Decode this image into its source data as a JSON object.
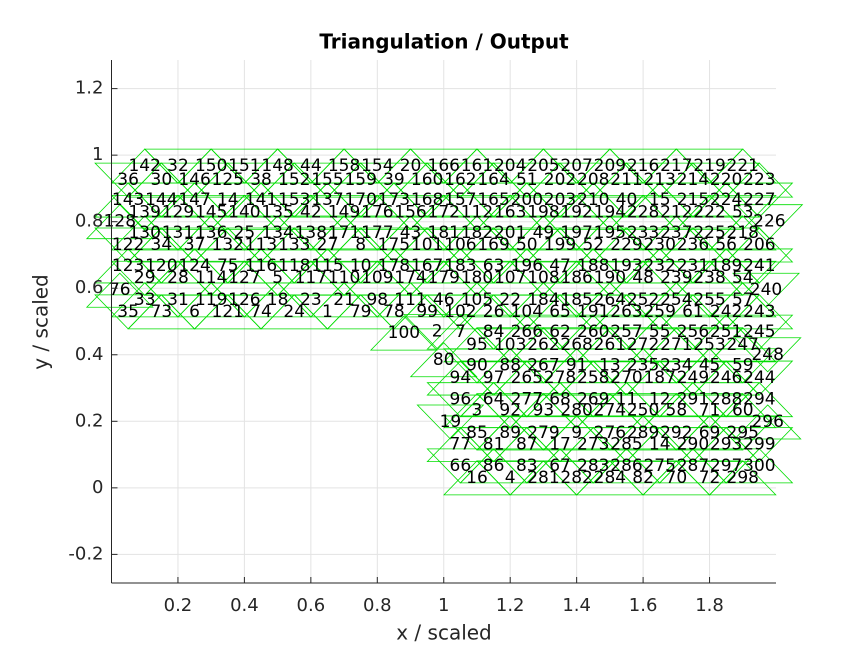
{
  "chart_data": {
    "type": "mesh",
    "title": "Triangulation / Output",
    "xlabel": "x / scaled",
    "ylabel": "y / scaled",
    "xlim": [
      0,
      2
    ],
    "ylim": [
      -0.286,
      1.286
    ],
    "xticks": [
      0.2,
      0.4,
      0.6,
      0.8,
      1,
      1.2,
      1.4,
      1.6,
      1.8
    ],
    "yticks": [
      -0.2,
      0,
      0.2,
      0.4,
      0.6,
      0.8,
      1,
      1.2
    ],
    "grid": true,
    "color": "#00dd00",
    "rows": [
      {
        "y": 0.967,
        "x": [
          0.1,
          0.2,
          0.3,
          0.4,
          0.5,
          0.6,
          0.7,
          0.8,
          0.9,
          1,
          1.1,
          1.2,
          1.3,
          1.4,
          1.5,
          1.6,
          1.7,
          1.8,
          1.9
        ],
        "labels": [
          142,
          32,
          150,
          151,
          148,
          44,
          158,
          154,
          20,
          166,
          161,
          204,
          205,
          207,
          209,
          216,
          217,
          219,
          221
        ]
      },
      {
        "y": 0.925,
        "x": [
          0.05,
          0.15,
          0.25,
          0.35,
          0.45,
          0.55,
          0.65,
          0.75,
          0.85,
          0.95,
          1.05,
          1.15,
          1.25,
          1.35,
          1.45,
          1.55,
          1.65,
          1.75,
          1.85,
          1.95
        ],
        "labels": [
          36,
          30,
          146,
          125,
          38,
          152,
          155,
          159,
          39,
          160,
          162,
          164,
          51,
          202,
          208,
          211,
          213,
          214,
          220,
          223
        ]
      },
      {
        "y": 0.865,
        "x": [
          0.05,
          0.15,
          0.25,
          0.35,
          0.45,
          0.55,
          0.65,
          0.75,
          0.85,
          0.95,
          1.05,
          1.15,
          1.25,
          1.35,
          1.45,
          1.55,
          1.65,
          1.75,
          1.85,
          1.95
        ],
        "labels": [
          143,
          144,
          147,
          14,
          141,
          153,
          137,
          170,
          173,
          168,
          157,
          165,
          200,
          203,
          210,
          40,
          15,
          215,
          224,
          227
        ]
      },
      {
        "y": 0.828,
        "x": [
          0.1,
          0.2,
          0.3,
          0.4,
          0.5,
          0.6,
          0.7,
          0.8,
          0.9,
          1,
          1.1,
          1.2,
          1.3,
          1.4,
          1.5,
          1.6,
          1.7,
          1.8,
          1.9
        ],
        "labels": [
          139,
          129,
          145,
          140,
          135,
          42,
          149,
          176,
          156,
          172,
          112,
          163,
          198,
          192,
          194,
          228,
          212,
          222,
          53
        ]
      },
      {
        "y": 0.766,
        "x": [
          0.1,
          0.2,
          0.3,
          0.4,
          0.5,
          0.6,
          0.7,
          0.8,
          0.9,
          1,
          1.1,
          1.2,
          1.3,
          1.4,
          1.5,
          1.6,
          1.7,
          1.8,
          1.9
        ],
        "labels": [
          130,
          131,
          136,
          25,
          134,
          138,
          171,
          177,
          43,
          181,
          182,
          201,
          49,
          197,
          195,
          233,
          237,
          225,
          218
        ]
      },
      {
        "y": 0.73,
        "x": [
          0.05,
          0.15,
          0.25,
          0.35,
          0.45,
          0.55,
          0.65,
          0.75,
          0.85,
          0.95,
          1.05,
          1.15,
          1.25,
          1.35,
          1.45,
          1.55,
          1.65,
          1.75,
          1.85,
          1.95
        ],
        "labels": [
          122,
          34,
          37,
          132,
          113,
          133,
          27,
          8,
          175,
          101,
          106,
          169,
          50,
          199,
          52,
          229,
          230,
          236,
          56,
          206
        ]
      },
      {
        "y": 0.667,
        "x": [
          0.05,
          0.15,
          0.25,
          0.35,
          0.45,
          0.55,
          0.65,
          0.75,
          0.85,
          0.95,
          1.05,
          1.15,
          1.25,
          1.35,
          1.45,
          1.55,
          1.65,
          1.75,
          1.85,
          1.95
        ],
        "labels": [
          123,
          120,
          124,
          75,
          116,
          118,
          115,
          10,
          178,
          167,
          183,
          63,
          196,
          47,
          188,
          193,
          232,
          231,
          189,
          241
        ]
      },
      {
        "y": 0.63,
        "x": [
          0.1,
          0.2,
          0.3,
          0.4,
          0.5,
          0.6,
          0.7,
          0.8,
          0.9,
          1,
          1.1,
          1.2,
          1.3,
          1.4,
          1.5,
          1.6,
          1.7,
          1.8,
          1.9
        ],
        "labels": [
          29,
          28,
          114,
          127,
          5,
          117,
          110,
          109,
          174,
          179,
          180,
          107,
          108,
          186,
          190,
          48,
          239,
          238,
          54
        ]
      },
      {
        "y": 0.565,
        "x": [
          0.1,
          0.2,
          0.3,
          0.4,
          0.5,
          0.6,
          0.7,
          0.8,
          0.9,
          1,
          1.1,
          1.2,
          1.3,
          1.4,
          1.5,
          1.6,
          1.7,
          1.8,
          1.9
        ],
        "labels": [
          33,
          31,
          119,
          126,
          18,
          23,
          21,
          98,
          111,
          46,
          105,
          22,
          184,
          185,
          264,
          252,
          254,
          255,
          57
        ]
      },
      {
        "y": 0.529,
        "x": [
          0.05,
          0.15,
          0.25,
          0.35,
          0.45,
          0.55,
          0.65,
          0.75,
          0.85,
          0.95,
          1.05,
          1.15,
          1.25,
          1.35,
          1.45,
          1.55,
          1.65,
          1.75,
          1.85,
          1.95
        ],
        "labels": [
          35,
          73,
          6,
          121,
          74,
          24,
          1,
          79,
          78,
          99,
          102,
          26,
          104,
          65,
          191,
          263,
          259,
          61,
          242,
          243
        ]
      },
      {
        "y": 0.8,
        "x": [
          0.025
        ],
        "labels": [
          128
        ]
      },
      {
        "y": 0.8,
        "x": [
          1.98
        ],
        "labels": [
          226
        ]
      },
      {
        "y": 0.594,
        "x": [
          0.025
        ],
        "labels": [
          76
        ]
      },
      {
        "y": 0.594,
        "x": [
          1.97
        ],
        "labels": [
          240
        ]
      },
      {
        "y": 0.465,
        "x": [
          0.88
        ],
        "labels": [
          100
        ]
      },
      {
        "y": 0.47,
        "x": [
          0.98
        ],
        "labels": [
          2
        ]
      },
      {
        "y": 0.468,
        "x": [
          1.05
        ],
        "labels": [
          7
        ]
      },
      {
        "y": 0.4,
        "x": [
          1.975
        ],
        "labels": [
          248
        ]
      },
      {
        "y": 0.385,
        "x": [
          1
        ],
        "labels": [
          80
        ]
      },
      {
        "y": 0.198,
        "x": [
          1.02
        ],
        "labels": [
          19
        ]
      },
      {
        "y": 0.198,
        "x": [
          1.975
        ],
        "labels": [
          296
        ]
      },
      {
        "y": 0.468,
        "x": [
          1.15,
          1.25,
          1.35,
          1.45,
          1.55,
          1.65,
          1.75,
          1.85,
          1.95
        ],
        "labels": [
          84,
          266,
          62,
          260,
          257,
          55,
          256,
          251,
          245
        ]
      },
      {
        "y": 0.43,
        "x": [
          1.1,
          1.2,
          1.3,
          1.4,
          1.5,
          1.6,
          1.7,
          1.8,
          1.9
        ],
        "labels": [
          95,
          103,
          262,
          268,
          261,
          272,
          271,
          253,
          247
        ]
      },
      {
        "y": 0.367,
        "x": [
          1.1,
          1.2,
          1.3,
          1.4,
          1.5,
          1.6,
          1.7,
          1.8,
          1.9
        ],
        "labels": [
          90,
          88,
          267,
          91,
          13,
          235,
          234,
          45,
          59
        ]
      },
      {
        "y": 0.33,
        "x": [
          1.05,
          1.15,
          1.25,
          1.35,
          1.45,
          1.55,
          1.65,
          1.75,
          1.85,
          1.95
        ],
        "labels": [
          94,
          97,
          265,
          278,
          258,
          270,
          187,
          249,
          246,
          244
        ]
      },
      {
        "y": 0.265,
        "x": [
          1.05,
          1.15,
          1.25,
          1.35,
          1.45,
          1.55,
          1.65,
          1.75,
          1.85,
          1.95
        ],
        "labels": [
          96,
          64,
          277,
          68,
          269,
          11,
          12,
          291,
          288,
          294
        ]
      },
      {
        "y": 0.232,
        "x": [
          1.1,
          1.2,
          1.3,
          1.4,
          1.5,
          1.6,
          1.7,
          1.8,
          1.9
        ],
        "labels": [
          3,
          92,
          93,
          280,
          274,
          250,
          58,
          71,
          60
        ]
      },
      {
        "y": 0.165,
        "x": [
          1.1,
          1.2,
          1.3,
          1.4,
          1.5,
          1.6,
          1.7,
          1.8,
          1.9
        ],
        "labels": [
          85,
          89,
          279,
          9,
          276,
          289,
          292,
          69,
          295
        ]
      },
      {
        "y": 0.13,
        "x": [
          1.05,
          1.15,
          1.25,
          1.35,
          1.45,
          1.55,
          1.65,
          1.75,
          1.85,
          1.95
        ],
        "labels": [
          77,
          81,
          87,
          17,
          273,
          285,
          14,
          290,
          293,
          299
        ]
      },
      {
        "y": 0.066,
        "x": [
          1.05,
          1.15,
          1.25,
          1.35,
          1.45,
          1.55,
          1.65,
          1.75,
          1.85,
          1.95
        ],
        "labels": [
          66,
          86,
          83,
          67,
          283,
          286,
          275,
          287,
          297,
          300
        ]
      },
      {
        "y": 0.03,
        "x": [
          1.1,
          1.2,
          1.3,
          1.4,
          1.5,
          1.6,
          1.7,
          1.8,
          1.9
        ],
        "labels": [
          16,
          4,
          281,
          282,
          284,
          82,
          70,
          72,
          298
        ]
      }
    ]
  }
}
